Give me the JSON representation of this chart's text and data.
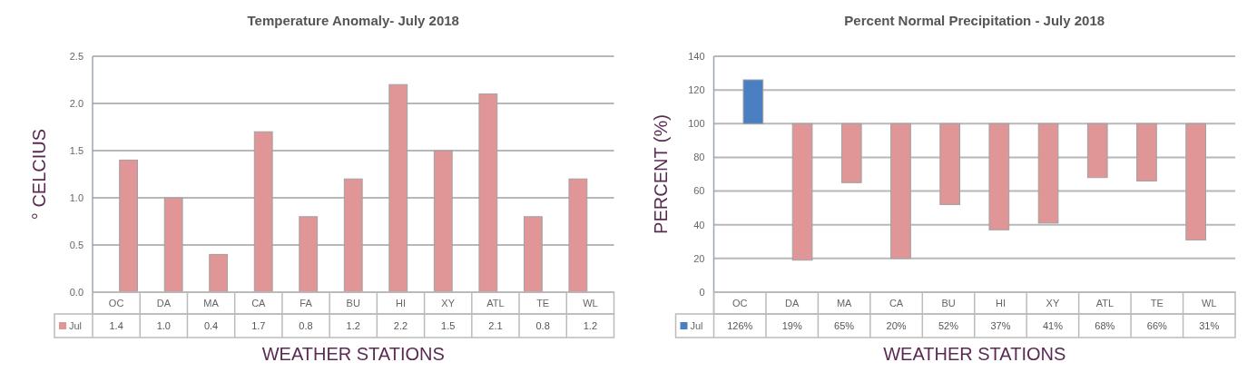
{
  "chart_data": [
    {
      "type": "bar",
      "title": "Temperature Anomaly- July 2018",
      "xlabel": "WEATHER STATIONS",
      "ylabel": "° CELCIUS",
      "categories": [
        "OC",
        "DA",
        "MA",
        "CA",
        "FA",
        "BU",
        "HI",
        "XY",
        "ATL",
        "TE",
        "WL"
      ],
      "series": [
        {
          "name": "Jul",
          "color": "#e09696",
          "values": [
            1.4,
            1.0,
            0.4,
            1.7,
            0.8,
            1.2,
            2.2,
            1.5,
            2.1,
            0.8,
            1.2
          ],
          "value_labels": [
            "1.4",
            "1.0",
            "0.4",
            "1.7",
            "0.8",
            "1.2",
            "2.2",
            "1.5",
            "2.1",
            "0.8",
            "1.2"
          ]
        }
      ],
      "ylim": [
        0,
        2.5
      ],
      "yticks": [
        {
          "value": 0,
          "label": "0.0"
        },
        {
          "value": 0.5,
          "label": "0.5"
        },
        {
          "value": 1,
          "label": "1.0"
        },
        {
          "value": 1.5,
          "label": "1.5"
        },
        {
          "value": 2,
          "label": "2.0"
        },
        {
          "value": 2.5,
          "label": "2.5"
        }
      ],
      "grid": "y",
      "legend": "bottom"
    },
    {
      "type": "bar",
      "title": "Percent Normal Precipitation - July 2018",
      "xlabel": "WEATHER STATIONS",
      "ylabel": "PERCENT (%)",
      "categories": [
        "OC",
        "DA",
        "MA",
        "CA",
        "BU",
        "HI",
        "XY",
        "ATL",
        "TE",
        "WL"
      ],
      "series": [
        {
          "name": "Jul",
          "color": "#4a7fc1",
          "colors": [
            "#4a7fc1",
            "#e09696",
            "#e09696",
            "#e09696",
            "#e09696",
            "#e09696",
            "#e09696",
            "#e09696",
            "#e09696",
            "#e09696"
          ],
          "values": [
            26,
            -81,
            -35,
            -80,
            -48,
            -63,
            -59,
            -32,
            -34,
            -69
          ],
          "base": [
            100,
            100,
            100,
            100,
            100,
            100,
            100,
            100,
            100,
            100
          ],
          "value_labels": [
            "126%",
            "19%",
            "65%",
            "20%",
            "52%",
            "37%",
            "41%",
            "68%",
            "66%",
            "31%"
          ]
        }
      ],
      "ylim": [
        0,
        140
      ],
      "yticks": [
        0,
        20,
        40,
        60,
        80,
        100,
        120,
        140
      ],
      "grid": "y",
      "legend": "bottom"
    }
  ]
}
